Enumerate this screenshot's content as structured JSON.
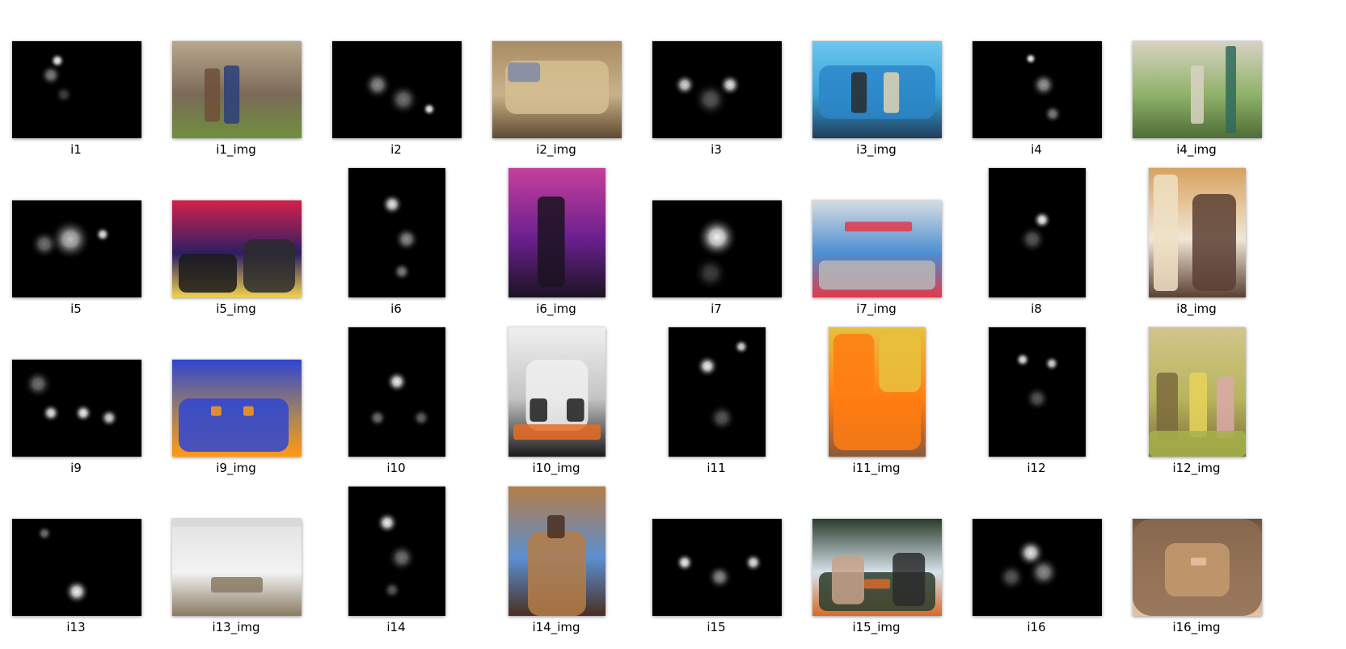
{
  "files": [
    {
      "name": "i1",
      "kind": "saliency-map",
      "shape": "landscape",
      "theme": "heat"
    },
    {
      "name": "i1_img",
      "kind": "photo",
      "shape": "landscape",
      "theme": "couple-barn",
      "colors": [
        "#7b6a58",
        "#b8a88d",
        "#6f8f3e"
      ]
    },
    {
      "name": "i2",
      "kind": "saliency-map",
      "shape": "landscape",
      "theme": "heat"
    },
    {
      "name": "i2_img",
      "kind": "photo",
      "shape": "landscape",
      "theme": "envelope",
      "colors": [
        "#c9b189",
        "#a98c63",
        "#5f4a34"
      ]
    },
    {
      "name": "i3",
      "kind": "saliency-map",
      "shape": "landscape",
      "theme": "heat"
    },
    {
      "name": "i3_img",
      "kind": "photo",
      "shape": "landscape",
      "theme": "stage-truck",
      "colors": [
        "#3aa2d8",
        "#6dc7ef",
        "#1f3d5c"
      ]
    },
    {
      "name": "i4",
      "kind": "saliency-map",
      "shape": "landscape",
      "theme": "heat"
    },
    {
      "name": "i4_img",
      "kind": "photo",
      "shape": "landscape",
      "theme": "street",
      "colors": [
        "#8fb269",
        "#d8d2c3",
        "#4f6d37"
      ]
    },
    {
      "name": "i5",
      "kind": "saliency-map",
      "shape": "landscape",
      "theme": "heat"
    },
    {
      "name": "i5_img",
      "kind": "photo",
      "shape": "landscape",
      "theme": "concert",
      "colors": [
        "#2b1f63",
        "#d2214a",
        "#f2d24c"
      ]
    },
    {
      "name": "i6",
      "kind": "saliency-map",
      "shape": "portrait",
      "theme": "heat"
    },
    {
      "name": "i6_img",
      "kind": "photo",
      "shape": "portrait",
      "theme": "trumpet",
      "colors": [
        "#6a1f8f",
        "#c63f9c",
        "#1b1320"
      ]
    },
    {
      "name": "i7",
      "kind": "saliency-map",
      "shape": "landscape",
      "theme": "heat"
    },
    {
      "name": "i7_img",
      "kind": "photo",
      "shape": "landscape",
      "theme": "race",
      "colors": [
        "#4b8ed1",
        "#d6dce2",
        "#e23a4a"
      ]
    },
    {
      "name": "i8",
      "kind": "saliency-map",
      "shape": "portrait",
      "theme": "heat"
    },
    {
      "name": "i8_img",
      "kind": "photo",
      "shape": "portrait",
      "theme": "woman",
      "colors": [
        "#f1e6d6",
        "#d8a25f",
        "#5b4033"
      ]
    },
    {
      "name": "i9",
      "kind": "saliency-map",
      "shape": "landscape",
      "theme": "heat"
    },
    {
      "name": "i9_img",
      "kind": "photo",
      "shape": "landscape",
      "theme": "scooter",
      "colors": [
        "#a2825f",
        "#2e45d2",
        "#ff9a14"
      ]
    },
    {
      "name": "i10",
      "kind": "saliency-map",
      "shape": "portrait",
      "theme": "heat"
    },
    {
      "name": "i10_img",
      "kind": "photo",
      "shape": "portrait",
      "theme": "panda",
      "colors": [
        "#c4c4c4",
        "#f0f0f0",
        "#1b1b1b"
      ]
    },
    {
      "name": "i11",
      "kind": "saliency-map",
      "shape": "portrait",
      "theme": "heat"
    },
    {
      "name": "i11_img",
      "kind": "photo",
      "shape": "portrait",
      "theme": "orange-fans",
      "colors": [
        "#ff7d12",
        "#e7c13f",
        "#8a5a3a"
      ]
    },
    {
      "name": "i12",
      "kind": "saliency-map",
      "shape": "portrait",
      "theme": "heat"
    },
    {
      "name": "i12_img",
      "kind": "photo",
      "shape": "portrait",
      "theme": "kids-yard",
      "colors": [
        "#b7b55c",
        "#d2c58c",
        "#7a6b3d"
      ]
    },
    {
      "name": "i13",
      "kind": "saliency-map",
      "shape": "landscape",
      "theme": "heat"
    },
    {
      "name": "i13_img",
      "kind": "photo",
      "shape": "landscape",
      "theme": "white-room",
      "colors": [
        "#f3f3f3",
        "#e2e2e2",
        "#8a7a63"
      ]
    },
    {
      "name": "i14",
      "kind": "saliency-map",
      "shape": "portrait",
      "theme": "heat"
    },
    {
      "name": "i14_img",
      "kind": "photo",
      "shape": "portrait",
      "theme": "statue",
      "colors": [
        "#5b8fd0",
        "#b57d47",
        "#4a2e21"
      ]
    },
    {
      "name": "i15",
      "kind": "saliency-map",
      "shape": "landscape",
      "theme": "heat"
    },
    {
      "name": "i15_img",
      "kind": "photo",
      "shape": "landscape",
      "theme": "cafe",
      "colors": [
        "#d7e2ea",
        "#2a3d2c",
        "#d66a2a"
      ]
    },
    {
      "name": "i16",
      "kind": "saliency-map",
      "shape": "landscape",
      "theme": "heat"
    },
    {
      "name": "i16_img",
      "kind": "photo",
      "shape": "landscape",
      "theme": "cat",
      "colors": [
        "#c59b6f",
        "#6f5138",
        "#e8c3a2"
      ]
    }
  ]
}
